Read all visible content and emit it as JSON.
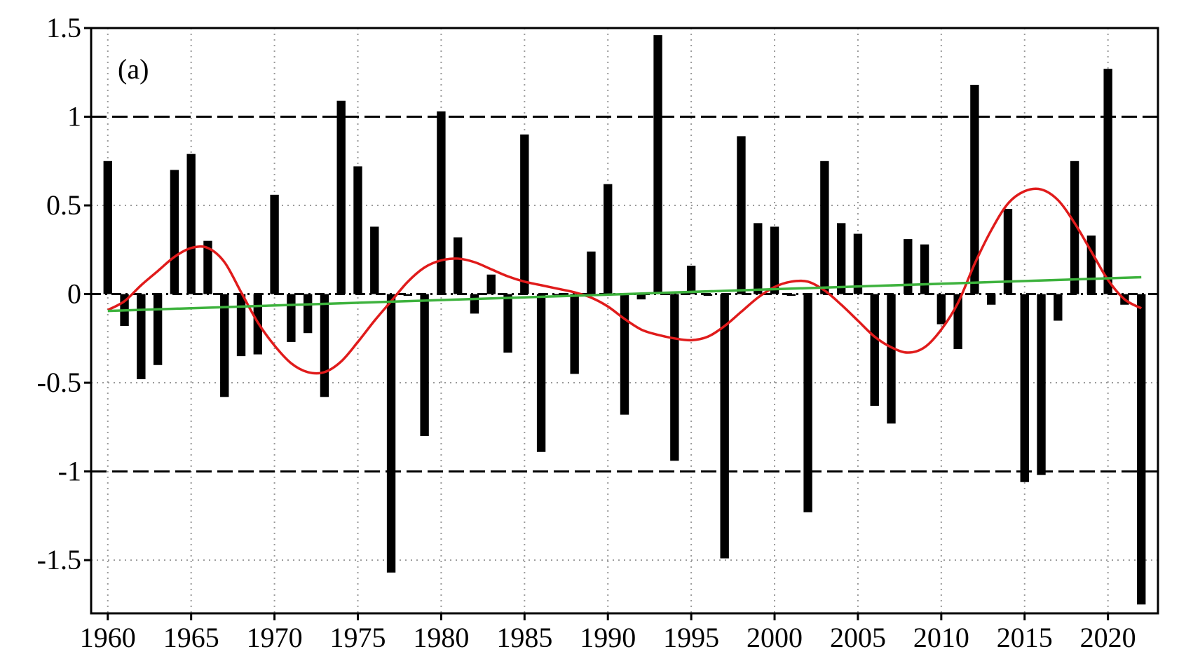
{
  "chart_data": {
    "type": "bar",
    "panel_label": "(a)",
    "title": "",
    "xlabel": "",
    "ylabel": "",
    "xlim": [
      1959,
      2023
    ],
    "ylim": [
      -1.8,
      1.5
    ],
    "x_ticks": [
      1960,
      1965,
      1970,
      1975,
      1980,
      1985,
      1990,
      1995,
      2000,
      2005,
      2010,
      2015,
      2020
    ],
    "x_tick_labels": [
      "1960",
      "1965",
      "1970",
      "1975",
      "1980",
      "1985",
      "1990",
      "1995",
      "2000",
      "2005",
      "2010",
      "2015",
      "2020"
    ],
    "y_ticks": [
      1.5,
      1,
      0.5,
      0,
      -0.5,
      -1,
      -1.5
    ],
    "y_tick_labels": [
      "1.5",
      "1",
      "0.5",
      "0",
      "-0.5",
      "-1",
      "-1.5"
    ],
    "grid": true,
    "reference_lines": [
      1,
      0,
      -1
    ],
    "series": [
      {
        "type": "bar",
        "color": "#000000",
        "x": [
          1960,
          1961,
          1962,
          1963,
          1964,
          1965,
          1966,
          1967,
          1968,
          1969,
          1970,
          1971,
          1972,
          1973,
          1974,
          1975,
          1976,
          1977,
          1978,
          1979,
          1980,
          1981,
          1982,
          1983,
          1984,
          1985,
          1986,
          1987,
          1988,
          1989,
          1990,
          1991,
          1992,
          1993,
          1994,
          1995,
          1996,
          1997,
          1998,
          1999,
          2000,
          2001,
          2002,
          2003,
          2004,
          2005,
          2006,
          2007,
          2008,
          2009,
          2010,
          2011,
          2012,
          2013,
          2014,
          2015,
          2016,
          2017,
          2018,
          2019,
          2020,
          2021,
          2022
        ],
        "values": [
          0.75,
          -0.18,
          -0.48,
          -0.4,
          0.7,
          0.79,
          0.3,
          -0.58,
          -0.35,
          -0.34,
          0.56,
          -0.27,
          -0.22,
          -0.58,
          1.09,
          0.72,
          0.38,
          -1.57,
          -0.01,
          -0.8,
          1.03,
          0.32,
          -0.11,
          0.11,
          -0.33,
          0.9,
          -0.89,
          -0.01,
          -0.45,
          0.24,
          0.62,
          -0.68,
          -0.03,
          1.46,
          -0.94,
          0.16,
          -0.01,
          -1.49,
          0.89,
          0.4,
          0.38,
          -0.01,
          -1.23,
          0.75,
          0.4,
          0.34,
          -0.63,
          -0.73,
          0.31,
          0.28,
          -0.17,
          -0.31,
          1.18,
          -0.06,
          0.48,
          -1.06,
          -1.02,
          -0.15,
          0.75,
          0.33,
          1.27,
          -0.06,
          -1.75
        ]
      },
      {
        "type": "line",
        "color": "#e01b1b",
        "x": [
          1960,
          1961,
          1962,
          1963,
          1964,
          1965,
          1966,
          1967,
          1968,
          1969,
          1970,
          1971,
          1972,
          1973,
          1974,
          1975,
          1976,
          1977,
          1978,
          1979,
          1980,
          1981,
          1982,
          1983,
          1984,
          1985,
          1986,
          1987,
          1988,
          1989,
          1990,
          1991,
          1992,
          1993,
          1994,
          1995,
          1996,
          1997,
          1998,
          1999,
          2000,
          2001,
          2002,
          2003,
          2004,
          2005,
          2006,
          2007,
          2008,
          2009,
          2010,
          2011,
          2012,
          2013,
          2014,
          2015,
          2016,
          2017,
          2018,
          2019,
          2020,
          2021,
          2022
        ],
        "values": [
          -0.09,
          -0.04,
          0.05,
          0.13,
          0.21,
          0.26,
          0.26,
          0.18,
          0.01,
          -0.16,
          -0.29,
          -0.39,
          -0.44,
          -0.44,
          -0.38,
          -0.27,
          -0.15,
          -0.04,
          0.07,
          0.15,
          0.19,
          0.2,
          0.18,
          0.14,
          0.1,
          0.07,
          0.05,
          0.03,
          0.01,
          -0.02,
          -0.07,
          -0.14,
          -0.2,
          -0.23,
          -0.25,
          -0.26,
          -0.24,
          -0.18,
          -0.1,
          -0.02,
          0.04,
          0.07,
          0.07,
          0.02,
          -0.06,
          -0.15,
          -0.24,
          -0.3,
          -0.33,
          -0.3,
          -0.2,
          -0.05,
          0.17,
          0.36,
          0.51,
          0.58,
          0.59,
          0.53,
          0.4,
          0.24,
          0.08,
          -0.03,
          -0.08
        ]
      },
      {
        "type": "line",
        "color": "#3db23d",
        "x": [
          1960,
          2022
        ],
        "values": [
          -0.095,
          0.095
        ]
      }
    ]
  }
}
